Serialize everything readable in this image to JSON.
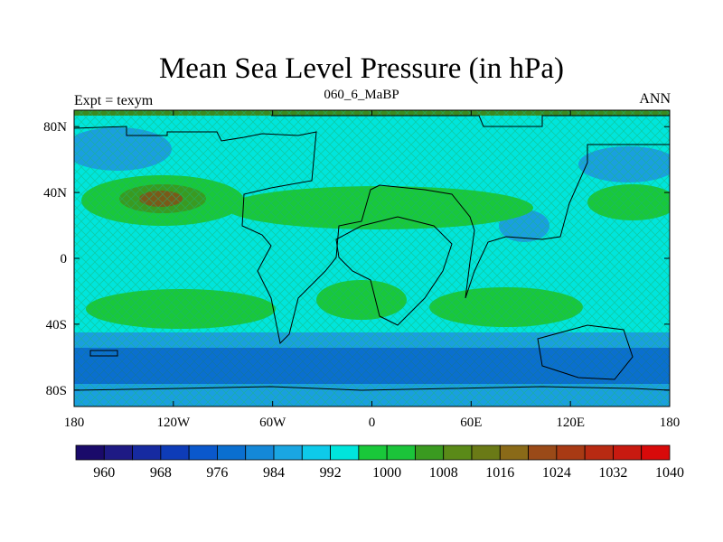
{
  "title": "Mean Sea Level Pressure (in hPa)",
  "subtitle_left": "Expt = texym",
  "subtitle_center": "060_6_MaBP",
  "subtitle_right": "ANN",
  "colors": {
    "ocean_base": "#00e5dc",
    "subpolar_blue": "#1a9fe0",
    "deep_blue": "#0a6fd0",
    "green": "#19c83a",
    "dark_green": "#3a9a20",
    "brown": "#7a5a18",
    "coast": "#000000"
  },
  "map": {
    "lon_range": [
      -180,
      180
    ],
    "lat_range": [
      -90,
      90
    ],
    "lon_ticks": [
      "180",
      "120W",
      "60W",
      "0",
      "60E",
      "120E",
      "180"
    ],
    "lat_ticks": [
      "80N",
      "40N",
      "0",
      "40S",
      "80S"
    ]
  },
  "colorbar": {
    "labels": [
      "960",
      "968",
      "976",
      "984",
      "992",
      "1000",
      "1008",
      "1016",
      "1024",
      "1032",
      "1040"
    ],
    "colors": [
      "#1a0a6a",
      "#1e1a84",
      "#162aa0",
      "#0e3cb8",
      "#0a58cc",
      "#0a6fd0",
      "#1488d8",
      "#1aa6e2",
      "#0ecaeA",
      "#00e5dc",
      "#19c83a",
      "#1bc43a",
      "#3a9a20",
      "#5a8a18",
      "#6a7a16",
      "#8a6a18",
      "#9a4a18",
      "#a83a14",
      "#b82a12",
      "#c81a10",
      "#d80a0a"
    ]
  }
}
